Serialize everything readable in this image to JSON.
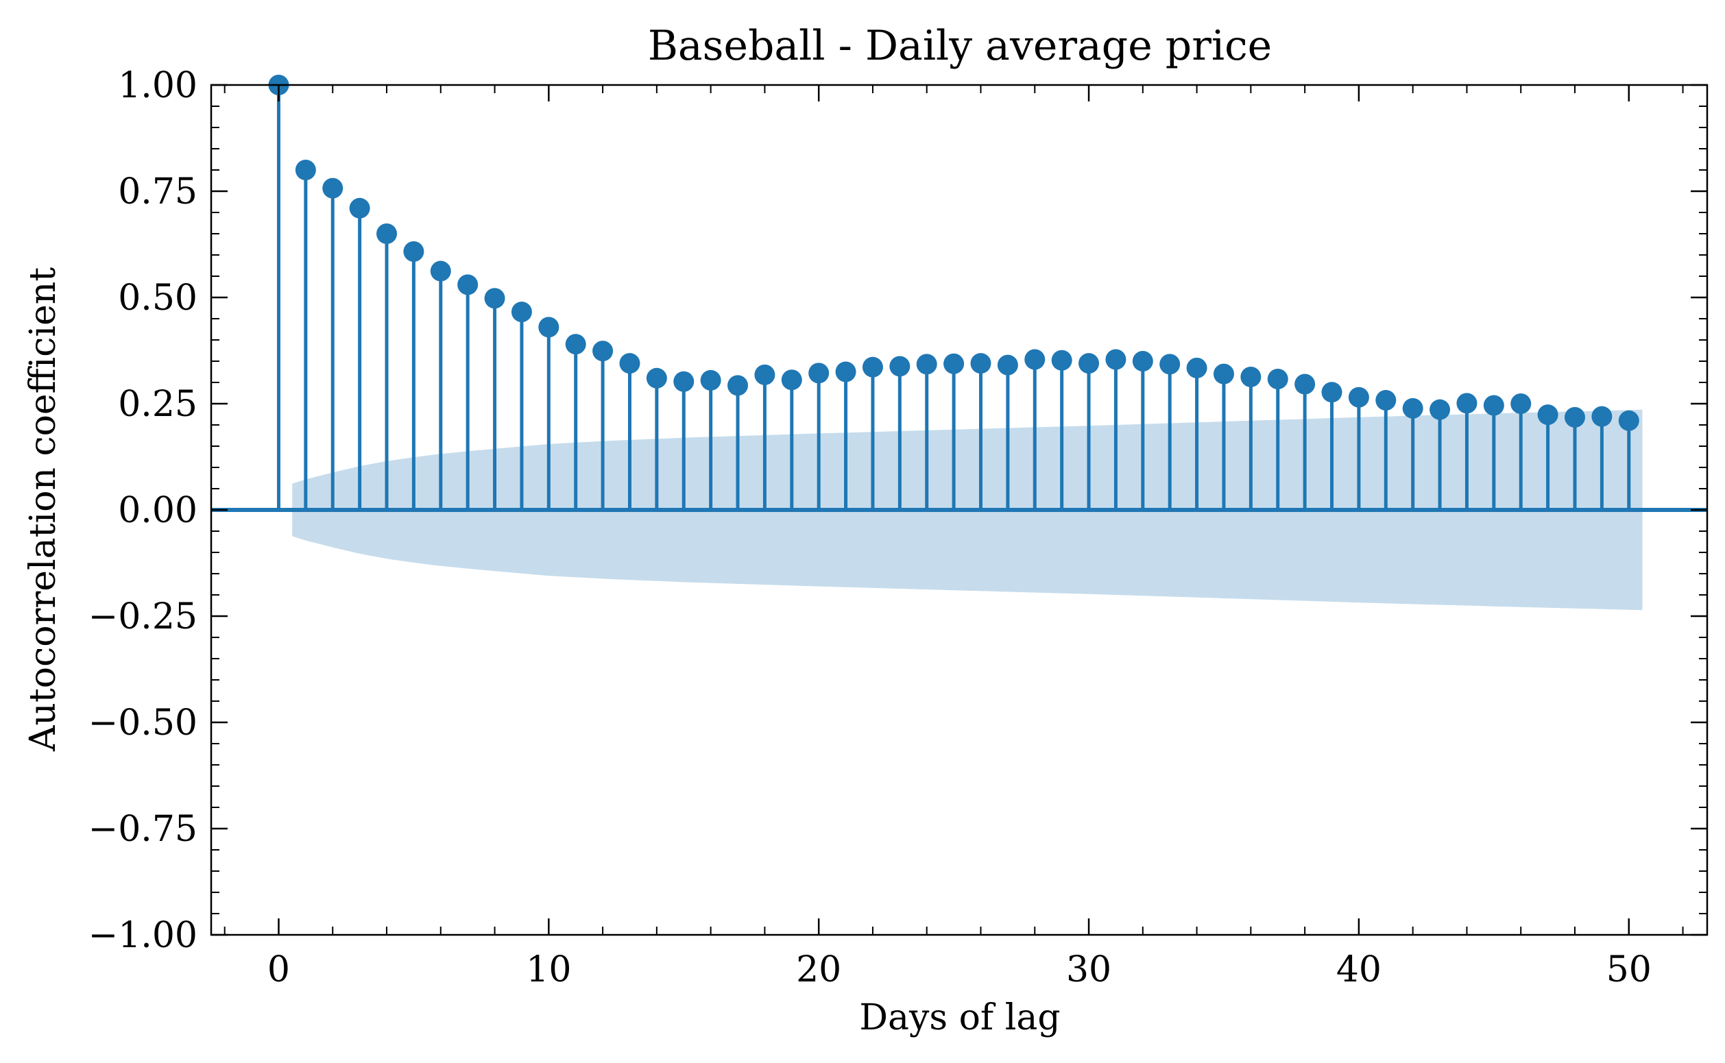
{
  "chart_data": {
    "type": "stem",
    "title": "Baseball - Daily average price",
    "xlabel": "Days of lag",
    "ylabel": "Autocorrelation coefficient",
    "xlim": [
      -2.5,
      52.9
    ],
    "ylim": [
      -1.0,
      1.0
    ],
    "x_ticks": [
      0,
      10,
      20,
      30,
      40,
      50
    ],
    "x_tick_labels": [
      "0",
      "10",
      "20",
      "30",
      "40",
      "50"
    ],
    "y_ticks": [
      -1.0,
      -0.75,
      -0.5,
      -0.25,
      0.0,
      0.25,
      0.5,
      0.75,
      1.0
    ],
    "y_tick_labels": [
      "−1.00",
      "−0.75",
      "−0.50",
      "−0.25",
      "0.00",
      "0.25",
      "0.50",
      "0.75",
      "1.00"
    ],
    "grid": false,
    "series": [
      {
        "lags": [
          0,
          1,
          2,
          3,
          4,
          5,
          6,
          7,
          8,
          9,
          10,
          11,
          12,
          13,
          14,
          15,
          16,
          17,
          18,
          19,
          20,
          21,
          22,
          23,
          24,
          25,
          26,
          27,
          28,
          29,
          30,
          31,
          32,
          33,
          34,
          35,
          36,
          37,
          38,
          39,
          40,
          41,
          42,
          43,
          44,
          45,
          46,
          47,
          48,
          49,
          50
        ],
        "values": [
          1.0,
          0.8,
          0.757,
          0.71,
          0.65,
          0.608,
          0.562,
          0.53,
          0.498,
          0.466,
          0.43,
          0.39,
          0.374,
          0.345,
          0.31,
          0.302,
          0.305,
          0.293,
          0.318,
          0.306,
          0.322,
          0.325,
          0.336,
          0.338,
          0.343,
          0.344,
          0.345,
          0.341,
          0.354,
          0.352,
          0.345,
          0.354,
          0.35,
          0.343,
          0.334,
          0.32,
          0.313,
          0.308,
          0.296,
          0.277,
          0.265,
          0.258,
          0.239,
          0.236,
          0.251,
          0.246,
          0.25,
          0.224,
          0.218,
          0.22,
          0.21
        ]
      }
    ],
    "confidence_band": {
      "lags": [
        0.5,
        1,
        2,
        3,
        4,
        5,
        6,
        7,
        8,
        10,
        12,
        15,
        20,
        25,
        30,
        35,
        40,
        45,
        50,
        50.5
      ],
      "upper": [
        0.062,
        0.072,
        0.088,
        0.103,
        0.115,
        0.124,
        0.132,
        0.138,
        0.144,
        0.155,
        0.162,
        0.17,
        0.18,
        0.189,
        0.198,
        0.208,
        0.218,
        0.227,
        0.235,
        0.236
      ]
    },
    "colors": {
      "stem": "#1f77b4",
      "band": "#c6dcec",
      "axes": "#000000"
    }
  }
}
